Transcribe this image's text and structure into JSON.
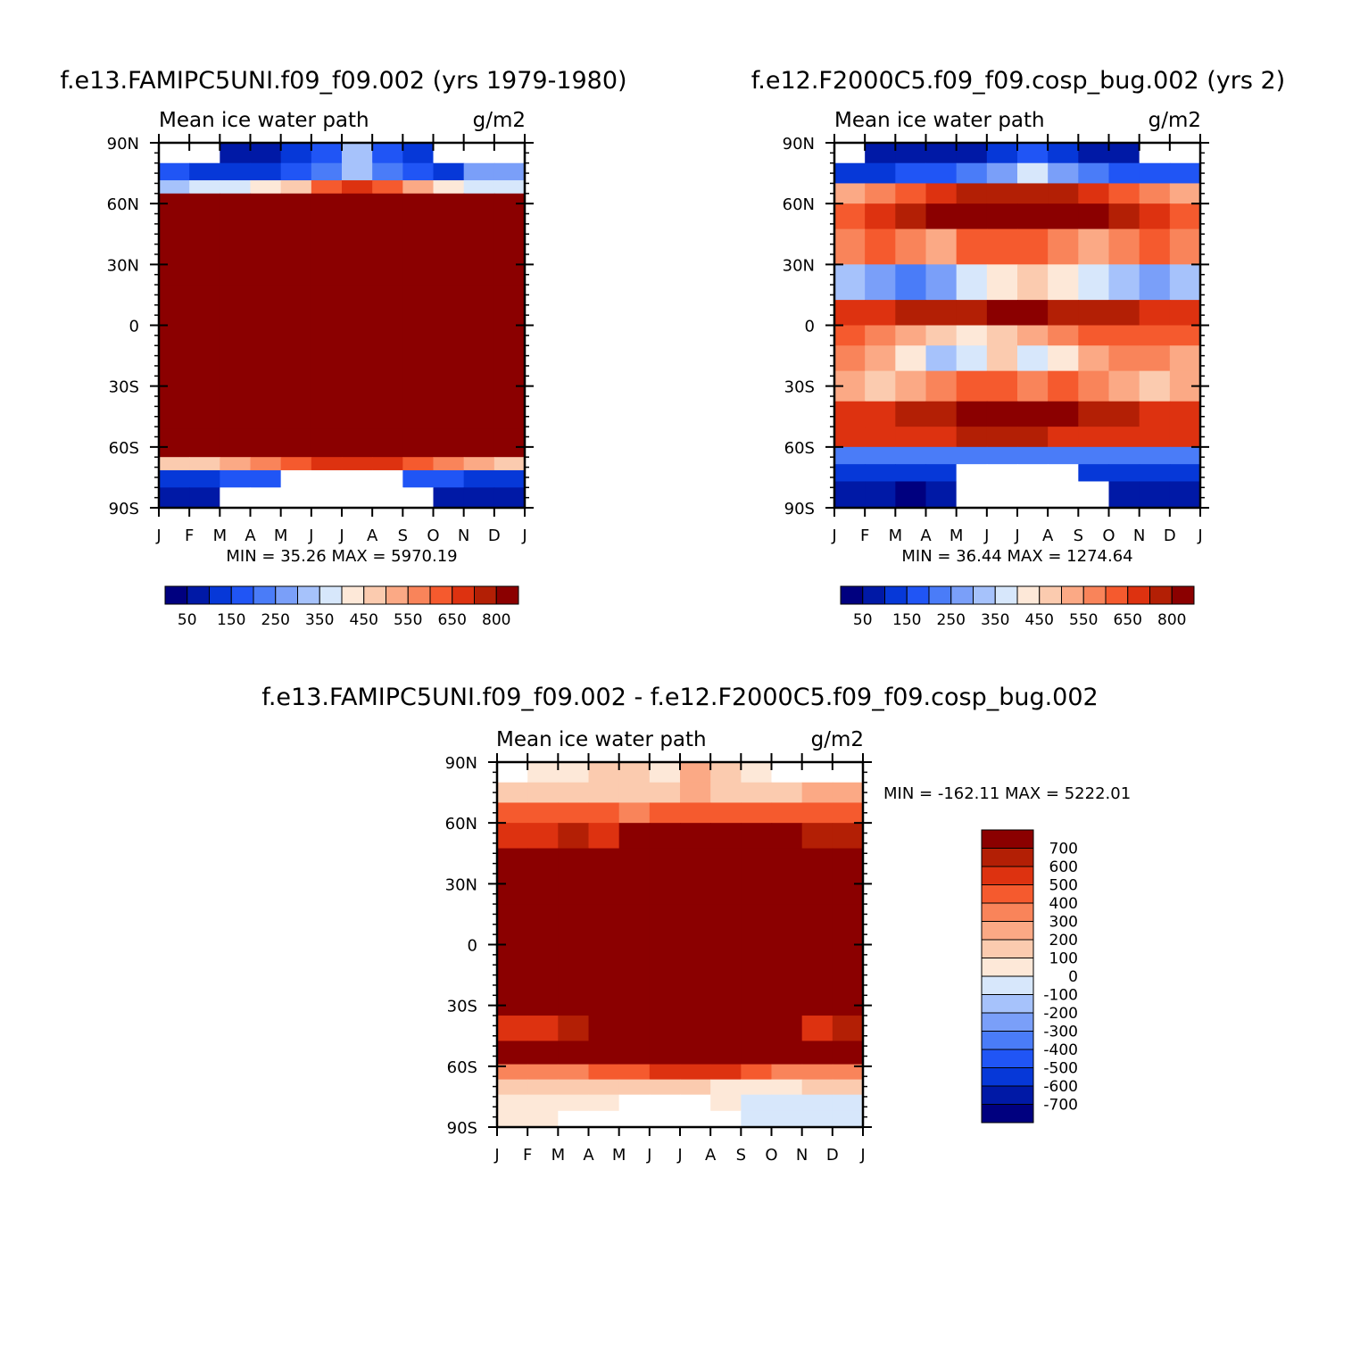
{
  "colors": {
    "seq": [
      "#00007f",
      "#0019a6",
      "#0638d8",
      "#2055f5",
      "#4a7cf8",
      "#7a9ff9",
      "#a6c2fb",
      "#d7e7fb",
      "#fde8d8",
      "#fbcbaf",
      "#fba985",
      "#f9845a",
      "#f55a2e",
      "#dd3210",
      "#b31f05",
      "#8b0000"
    ],
    "diff": [
      "#8b0000",
      "#b31f05",
      "#dd3210",
      "#f55a2e",
      "#f9845a",
      "#fba985",
      "#fbcbaf",
      "#fde8d8",
      "#d7e7fb",
      "#a6c2fb",
      "#7a9ff9",
      "#4a7cf8",
      "#2055f5",
      "#0638d8",
      "#0019a6",
      "#00007f"
    ]
  },
  "chart_data": [
    {
      "type": "heatmap",
      "id": "p1",
      "title": "f.e13.FAMIPC5UNI.f09_f09.002 (yrs 1979-1980)",
      "subtitle_left": "Mean ice water path",
      "units": "g/m2",
      "minmax": "MIN =    35.26  MAX = 5970.19",
      "min": 35.26,
      "max": 5970.19,
      "x_ticks": [
        "J",
        "F",
        "M",
        "A",
        "M",
        "J",
        "J",
        "A",
        "S",
        "O",
        "N",
        "D",
        "J"
      ],
      "y_ticks": [
        "90N",
        "60N",
        "30N",
        "0",
        "30S",
        "60S",
        "90S"
      ],
      "y_range": [
        -90,
        90
      ],
      "colorbar_labels": [
        "50",
        "150",
        "250",
        "350",
        "450",
        "550",
        "650",
        "800"
      ],
      "latitudes": [
        85,
        75,
        68,
        62,
        40,
        0,
        -40,
        -62,
        -68,
        -75,
        -85
      ],
      "months": [
        "J",
        "F",
        "M",
        "A",
        "M",
        "J",
        "J",
        "A",
        "S",
        "O",
        "N",
        "D"
      ],
      "field_levels": [
        [
          -1,
          -1,
          1,
          1,
          2,
          3,
          6,
          3,
          2,
          -1,
          -1,
          -1
        ],
        [
          3,
          2,
          2,
          2,
          3,
          4,
          6,
          4,
          3,
          2,
          5,
          5
        ],
        [
          6,
          7,
          7,
          8,
          9,
          12,
          13,
          12,
          10,
          8,
          7,
          7
        ],
        [
          15,
          15,
          15,
          15,
          15,
          15,
          15,
          15,
          15,
          15,
          15,
          15
        ],
        [
          15,
          15,
          15,
          15,
          15,
          15,
          15,
          15,
          15,
          15,
          15,
          15
        ],
        [
          15,
          15,
          15,
          15,
          15,
          15,
          15,
          15,
          15,
          15,
          15,
          15
        ],
        [
          15,
          15,
          15,
          15,
          15,
          15,
          15,
          15,
          15,
          15,
          15,
          15
        ],
        [
          15,
          15,
          15,
          15,
          15,
          15,
          15,
          15,
          15,
          15,
          15,
          15
        ],
        [
          9,
          9,
          10,
          11,
          12,
          13,
          13,
          13,
          12,
          11,
          10,
          9
        ],
        [
          2,
          2,
          3,
          3,
          -1,
          -1,
          -1,
          -1,
          3,
          3,
          2,
          2
        ],
        [
          1,
          1,
          -1,
          -1,
          -1,
          -1,
          -1,
          -1,
          -1,
          1,
          1,
          1
        ]
      ]
    },
    {
      "type": "heatmap",
      "id": "p2",
      "title": "f.e12.F2000C5.f09_f09.cosp_bug.002 (yrs 2)",
      "subtitle_left": "Mean ice water path",
      "units": "g/m2",
      "minmax": "MIN =    36.44  MAX = 1274.64",
      "min": 36.44,
      "max": 1274.64,
      "x_ticks": [
        "J",
        "F",
        "M",
        "A",
        "M",
        "J",
        "J",
        "A",
        "S",
        "O",
        "N",
        "D",
        "J"
      ],
      "y_ticks": [
        "90N",
        "60N",
        "30N",
        "0",
        "30S",
        "60S",
        "90S"
      ],
      "y_range": [
        -90,
        90
      ],
      "colorbar_labels": [
        "50",
        "150",
        "250",
        "350",
        "450",
        "550",
        "650",
        "800"
      ],
      "latitudes": [
        85,
        75,
        65,
        55,
        40,
        20,
        5,
        -5,
        -15,
        -30,
        -45,
        -55,
        -65,
        -72,
        -82
      ],
      "months": [
        "J",
        "F",
        "M",
        "A",
        "M",
        "J",
        "J",
        "A",
        "S",
        "O",
        "N",
        "D"
      ],
      "field_levels": [
        [
          -1,
          1,
          1,
          1,
          1,
          2,
          3,
          2,
          1,
          1,
          -1,
          -1
        ],
        [
          2,
          2,
          3,
          3,
          4,
          5,
          7,
          5,
          4,
          3,
          3,
          3
        ],
        [
          10,
          11,
          12,
          13,
          14,
          14,
          14,
          14,
          13,
          12,
          11,
          10
        ],
        [
          12,
          13,
          14,
          15,
          15,
          15,
          15,
          15,
          15,
          14,
          13,
          12
        ],
        [
          11,
          12,
          11,
          10,
          12,
          12,
          12,
          11,
          10,
          11,
          12,
          11
        ],
        [
          6,
          5,
          4,
          5,
          7,
          8,
          9,
          8,
          7,
          6,
          5,
          6
        ],
        [
          13,
          13,
          14,
          14,
          14,
          15,
          15,
          14,
          14,
          14,
          13,
          13
        ],
        [
          12,
          11,
          10,
          9,
          8,
          9,
          10,
          11,
          12,
          12,
          12,
          12
        ],
        [
          11,
          10,
          8,
          6,
          7,
          9,
          7,
          8,
          10,
          11,
          11,
          10
        ],
        [
          10,
          9,
          10,
          11,
          12,
          12,
          11,
          12,
          11,
          10,
          9,
          10
        ],
        [
          13,
          13,
          14,
          14,
          15,
          15,
          15,
          15,
          14,
          14,
          13,
          13
        ],
        [
          13,
          13,
          13,
          13,
          14,
          14,
          14,
          13,
          13,
          13,
          13,
          13
        ],
        [
          4,
          4,
          4,
          4,
          4,
          4,
          4,
          4,
          4,
          4,
          4,
          4
        ],
        [
          2,
          2,
          2,
          2,
          -1,
          -1,
          -1,
          -1,
          2,
          2,
          2,
          2
        ],
        [
          1,
          1,
          0,
          1,
          -1,
          -1,
          -1,
          -1,
          -1,
          1,
          1,
          1
        ]
      ]
    },
    {
      "type": "heatmap",
      "id": "p3",
      "title": "f.e13.FAMIPC5UNI.f09_f09.002 - f.e12.F2000C5.f09_f09.cosp_bug.002",
      "subtitle_left": "Mean ice water path",
      "units": "g/m2",
      "minmax": "MIN = -162.11  MAX = 5222.01",
      "min": -162.11,
      "max": 5222.01,
      "x_ticks": [
        "J",
        "F",
        "M",
        "A",
        "M",
        "J",
        "J",
        "A",
        "S",
        "O",
        "N",
        "D",
        "J"
      ],
      "y_ticks": [
        "90N",
        "60N",
        "30N",
        "0",
        "30S",
        "60S",
        "90S"
      ],
      "y_range": [
        -90,
        90
      ],
      "colorbar_labels": [
        "700",
        "600",
        "500",
        "400",
        "300",
        "200",
        "100",
        "0",
        "-100",
        "-200",
        "-300",
        "-400",
        "-500",
        "-600",
        "-700"
      ],
      "latitudes": [
        85,
        75,
        65,
        55,
        40,
        0,
        -30,
        -40,
        -55,
        -63,
        -70,
        -78,
        -86
      ],
      "months": [
        "J",
        "F",
        "M",
        "A",
        "M",
        "J",
        "J",
        "A",
        "S",
        "O",
        "N",
        "D"
      ],
      "field_levels": [
        [
          -1,
          7,
          7,
          6,
          6,
          7,
          5,
          6,
          7,
          -1,
          -1,
          -1
        ],
        [
          6,
          6,
          6,
          6,
          6,
          6,
          5,
          6,
          6,
          6,
          5,
          5
        ],
        [
          3,
          3,
          3,
          3,
          4,
          3,
          3,
          3,
          3,
          3,
          3,
          3
        ],
        [
          2,
          2,
          1,
          2,
          0,
          0,
          0,
          0,
          0,
          0,
          1,
          1
        ],
        [
          0,
          0,
          0,
          0,
          0,
          0,
          0,
          0,
          0,
          0,
          0,
          0
        ],
        [
          0,
          0,
          0,
          0,
          0,
          0,
          0,
          0,
          0,
          0,
          0,
          0
        ],
        [
          0,
          0,
          0,
          0,
          0,
          0,
          0,
          0,
          0,
          0,
          0,
          0
        ],
        [
          2,
          2,
          1,
          0,
          0,
          0,
          0,
          0,
          0,
          0,
          2,
          1
        ],
        [
          0,
          0,
          0,
          0,
          0,
          0,
          0,
          0,
          0,
          0,
          0,
          0
        ],
        [
          4,
          4,
          4,
          3,
          3,
          2,
          2,
          2,
          3,
          4,
          4,
          4
        ],
        [
          6,
          6,
          6,
          6,
          6,
          6,
          6,
          7,
          7,
          7,
          6,
          6
        ],
        [
          7,
          7,
          7,
          7,
          -1,
          -1,
          -1,
          7,
          8,
          8,
          8,
          8
        ],
        [
          7,
          7,
          -1,
          -1,
          -1,
          -1,
          -1,
          -1,
          8,
          8,
          8,
          8
        ]
      ]
    }
  ]
}
